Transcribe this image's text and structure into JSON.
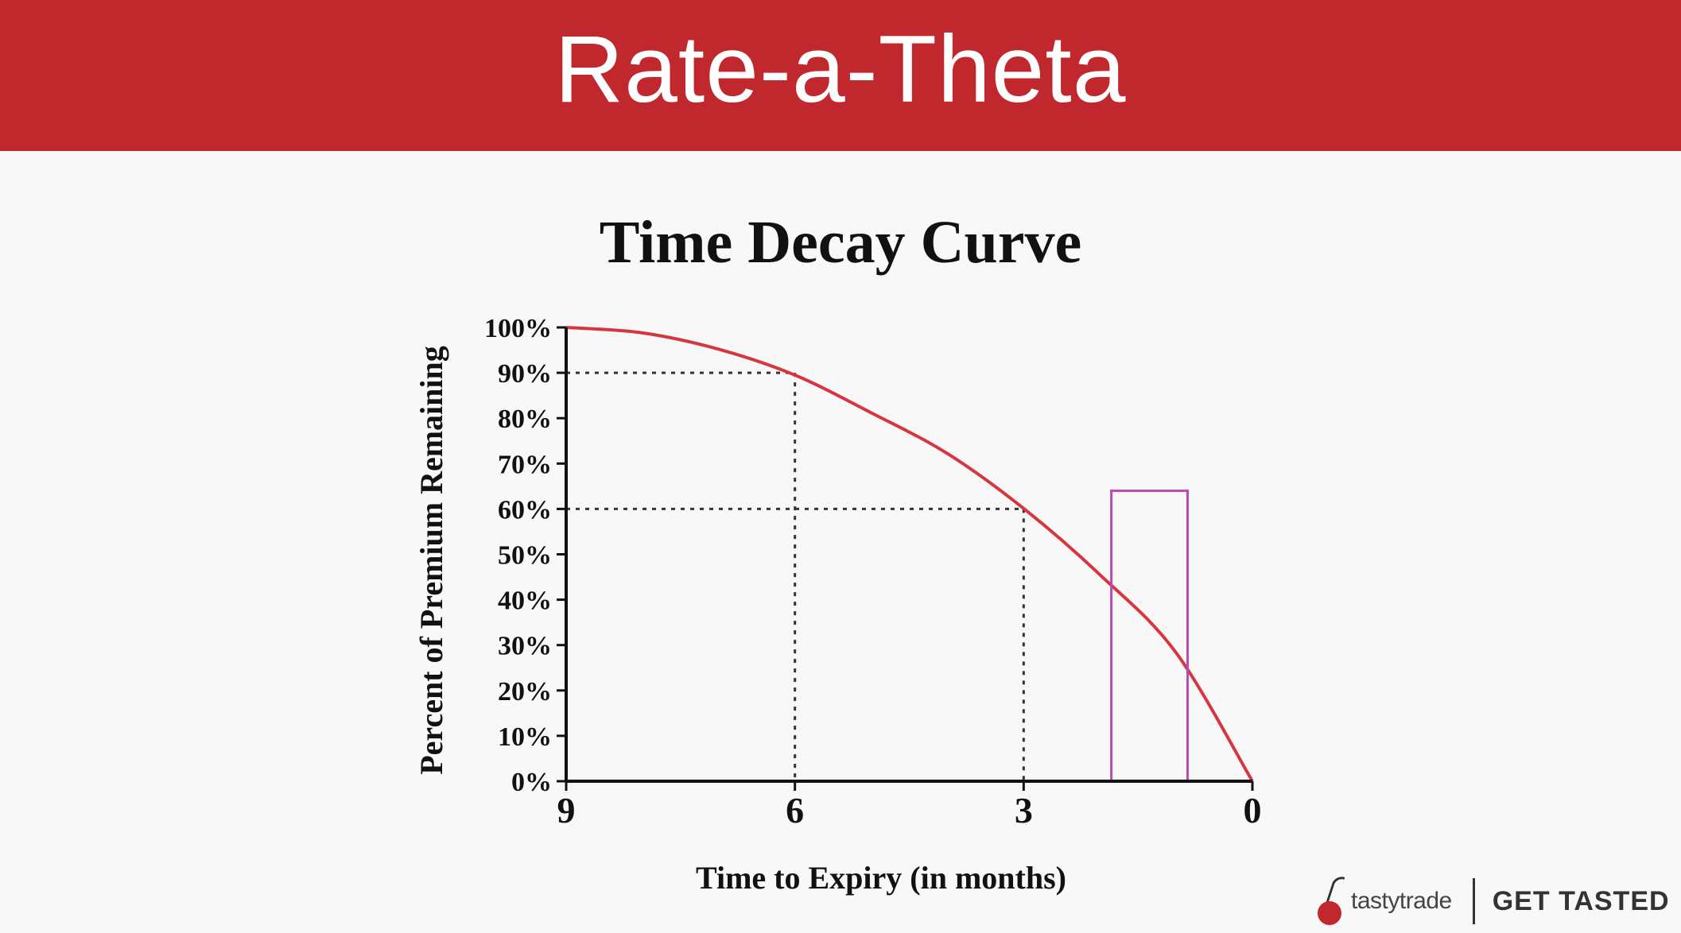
{
  "header": {
    "title": "Rate-a-Theta"
  },
  "chart_data": {
    "type": "line",
    "title": "Time Decay Curve",
    "xlabel": "Time to Expiry (in months)",
    "ylabel": "Percent of Premium Remaining",
    "x_ticks": [
      "9",
      "6",
      "3",
      "0"
    ],
    "y_ticks": [
      "0%",
      "10%",
      "20%",
      "30%",
      "40%",
      "50%",
      "60%",
      "70%",
      "80%",
      "90%",
      "100%"
    ],
    "xlim": [
      9,
      0
    ],
    "ylim": [
      0,
      100
    ],
    "series": [
      {
        "name": "Premium Remaining",
        "x": [
          9,
          8,
          7,
          6,
          5,
          4,
          3,
          2,
          1,
          0
        ],
        "y": [
          100,
          98.8,
          95.2,
          89.5,
          81.2,
          72.2,
          60.1,
          45.5,
          28.3,
          0
        ]
      }
    ],
    "reference_points": [
      {
        "x": 6,
        "y": 90
      },
      {
        "x": 3,
        "y": 60
      }
    ],
    "highlight_region": {
      "x_from": 1.85,
      "x_to": 0.85,
      "y_from": 0,
      "y_to": 64,
      "color": "#b84bb8"
    },
    "curve_color": "#d6363f"
  },
  "footer": {
    "brand": "tastytrade",
    "tagline": "GET TASTED"
  }
}
